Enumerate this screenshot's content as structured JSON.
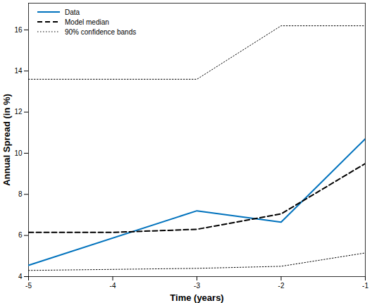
{
  "chart_data": {
    "type": "line",
    "x_label": "Time (years)",
    "y_label": "Annual Spread (in %)",
    "xlim": [
      -5,
      -1
    ],
    "xticks": [
      -5,
      -4,
      -3,
      -2,
      -1
    ],
    "ylim": [
      4,
      17.3
    ],
    "yticks": [
      4,
      6,
      8,
      10,
      12,
      14,
      16
    ],
    "legend": "upper left",
    "series": [
      {
        "name": "Data",
        "color": "#0072bd",
        "line_style": "solid",
        "x": [
          -5,
          -3,
          -2,
          -1
        ],
        "values": [
          4.55,
          7.2,
          6.65,
          10.7
        ]
      },
      {
        "name": "Model median",
        "color": "#000000",
        "line_style": "dashed",
        "x": [
          -5,
          -4,
          -3,
          -2,
          -1
        ],
        "values": [
          6.15,
          6.15,
          6.3,
          7.05,
          9.5
        ]
      },
      {
        "name": "90% confidence bands",
        "color": "#000000",
        "line_style": "dotted",
        "x": [
          -5,
          -4,
          -3,
          -2,
          -1
        ],
        "values": [
          13.6,
          13.6,
          13.6,
          16.2,
          16.2
        ]
      },
      {
        "name": "90% confidence bands",
        "color": "#000000",
        "line_style": "dotted",
        "x": [
          -5,
          -4,
          -3,
          -2,
          -1
        ],
        "values": [
          4.3,
          4.35,
          4.4,
          4.5,
          5.15
        ]
      }
    ]
  }
}
